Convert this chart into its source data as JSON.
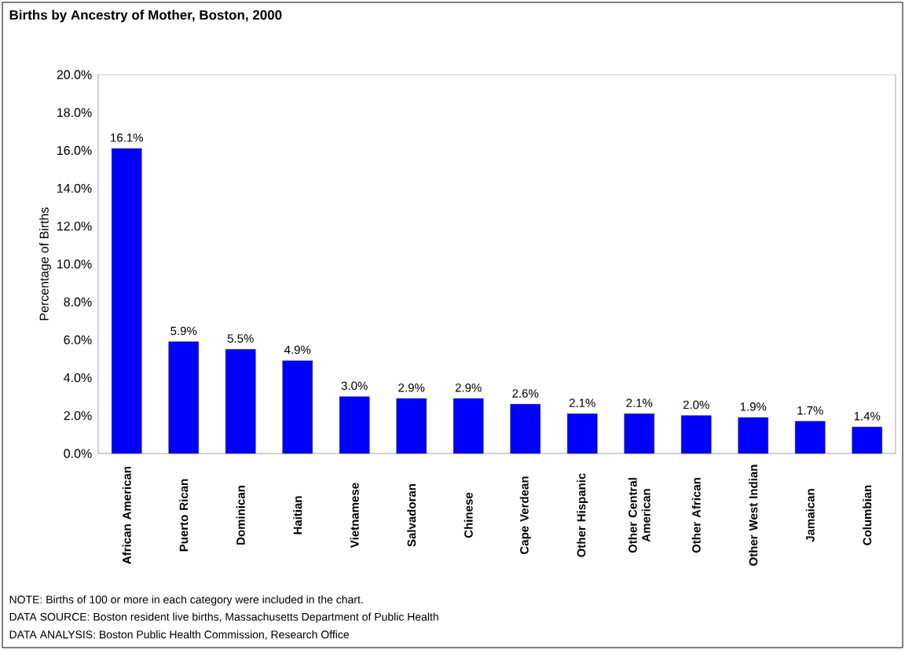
{
  "chart_data": {
    "type": "bar",
    "title": "Births by Ancestry of Mother, Boston, 2000",
    "ylabel": "Percentage of Births",
    "categories": [
      "African American",
      "Puerto Rican",
      "Dominican",
      "Haitian",
      "Vietnamese",
      "Salvadoran",
      "Chinese",
      "Cape Verdean",
      "Other Hispanic",
      "Other Central American",
      "Other African",
      "Other West Indian",
      "Jamaican",
      "Columbian"
    ],
    "values": [
      16.1,
      5.9,
      5.5,
      4.9,
      3.0,
      2.9,
      2.9,
      2.6,
      2.1,
      2.1,
      2.0,
      1.9,
      1.7,
      1.4
    ],
    "value_labels": [
      "16.1%",
      "5.9%",
      "5.5%",
      "4.9%",
      "3.0%",
      "2.9%",
      "2.9%",
      "2.6%",
      "2.1%",
      "2.1%",
      "2.0%",
      "1.9%",
      "1.7%",
      "1.4%"
    ],
    "color": "#0000ff",
    "ylim": [
      0,
      20
    ],
    "yticks": [
      {
        "value": 0,
        "label": "0.0%"
      },
      {
        "value": 2,
        "label": "2.0%"
      },
      {
        "value": 4,
        "label": "4.0%"
      },
      {
        "value": 6,
        "label": "6.0%"
      },
      {
        "value": 8,
        "label": "8.0%"
      },
      {
        "value": 10,
        "label": "10.0%"
      },
      {
        "value": 12,
        "label": "12.0%"
      },
      {
        "value": 14,
        "label": "14.0%"
      },
      {
        "value": 16,
        "label": "16.0%"
      },
      {
        "value": 18,
        "label": "18.0%"
      },
      {
        "value": 20,
        "label": "20.0%"
      }
    ],
    "grid": false,
    "annotations": [
      "NOTE:  Births of 100 or more in each category were included in the chart.",
      "DATA SOURCE:  Boston resident live births, Massachusetts Department of Public Health",
      "DATA ANALYSIS:  Boston Public Health Commission, Research Office"
    ]
  }
}
